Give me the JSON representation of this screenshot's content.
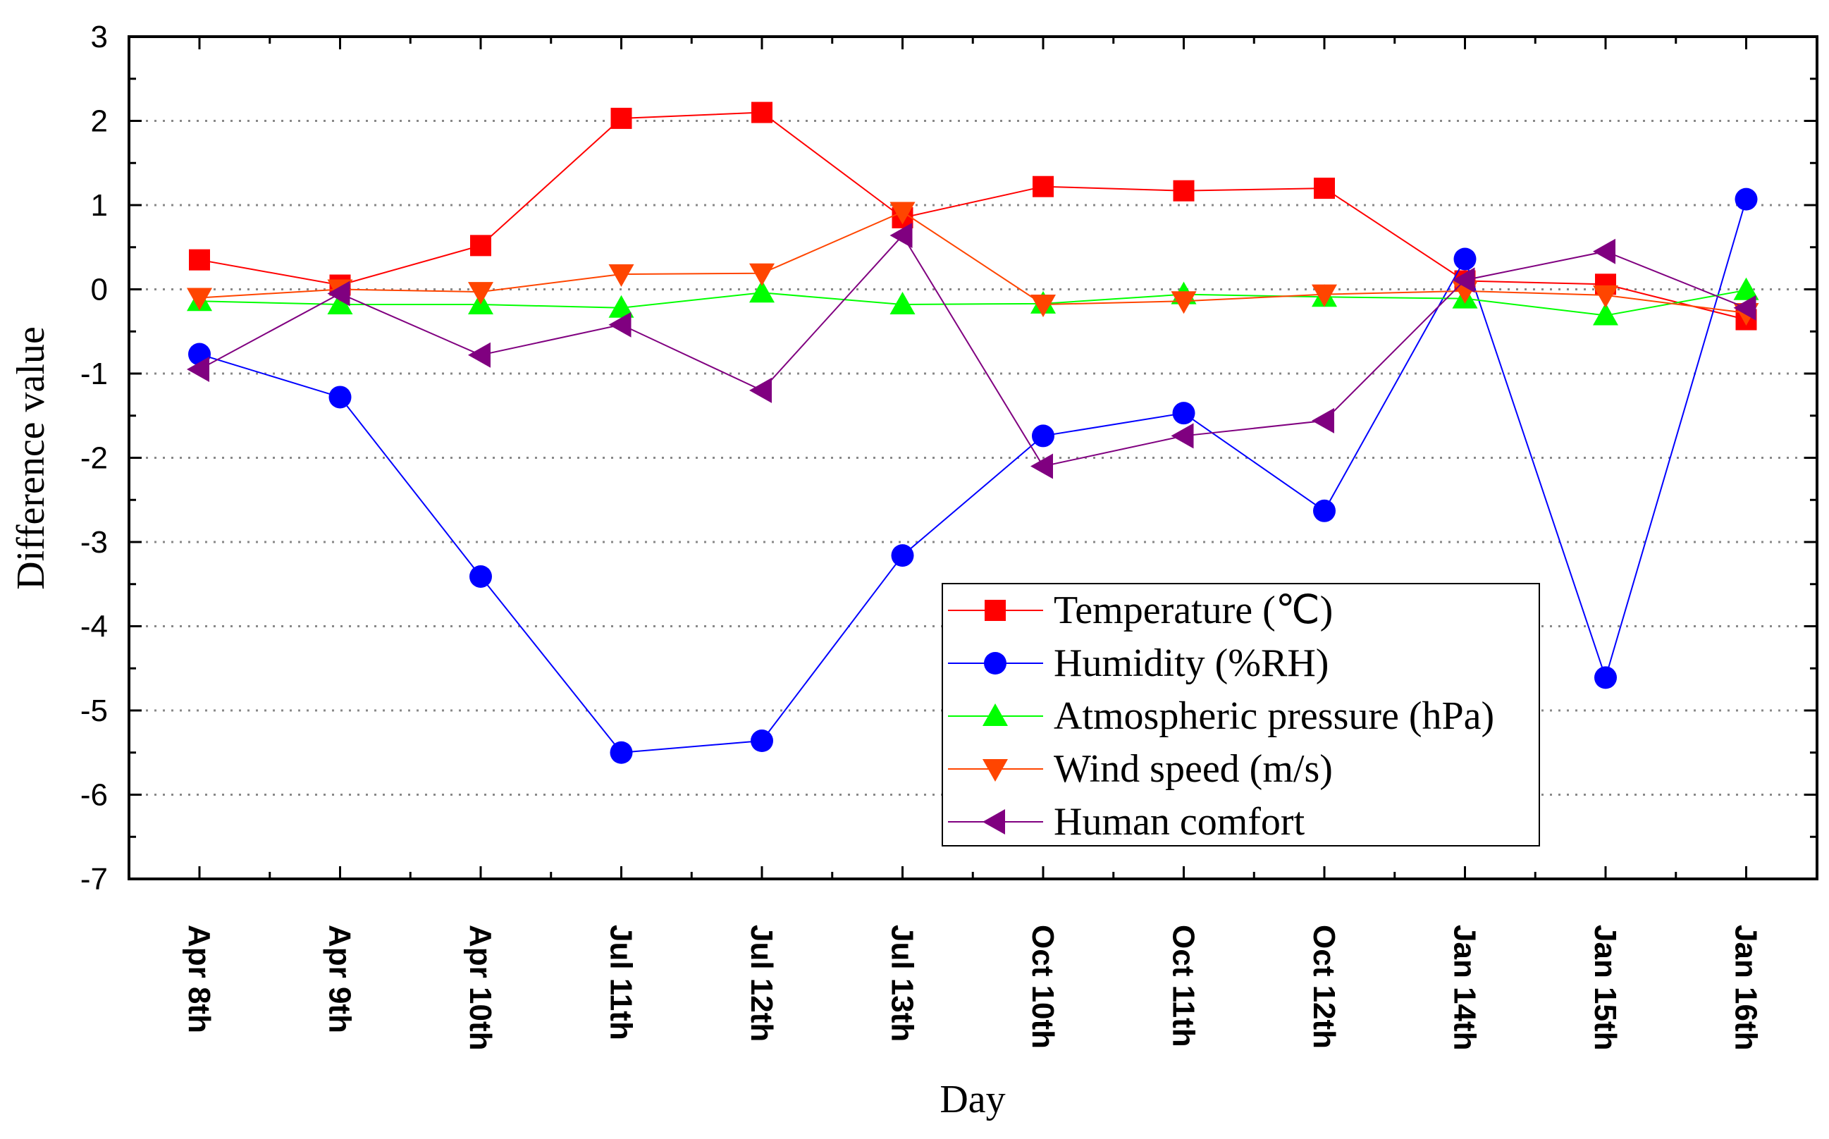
{
  "chart_data": {
    "type": "line",
    "title": "",
    "xlabel": "Day",
    "ylabel": "Difference value",
    "ylim": [
      -7,
      3
    ],
    "yticks": [
      "-7",
      "-6",
      "-5",
      "-4",
      "-3",
      "-2",
      "-1",
      "0",
      "1",
      "2",
      "3"
    ],
    "grid": "horizontal dotted",
    "legend_position": "lower-right",
    "categories": [
      "Apr 8th",
      "Apr 9th",
      "Apr 10th",
      "Jul 11th",
      "Jul 12th",
      "Jul 13th",
      "Oct 10th",
      "Oct 11th",
      "Oct 12th",
      "Jan 14th",
      "Jan 15th",
      "Jan 16th"
    ],
    "series": [
      {
        "name": "Temperature (℃)",
        "color": "#ff0000",
        "marker": "square",
        "values": [
          0.35,
          0.05,
          0.52,
          2.03,
          2.1,
          0.85,
          1.22,
          1.17,
          1.2,
          0.1,
          0.06,
          -0.36
        ]
      },
      {
        "name": "Humidity (%RH)",
        "color": "#0000ff",
        "marker": "circle",
        "values": [
          -0.77,
          -1.28,
          -3.41,
          -5.5,
          -5.36,
          -3.16,
          -1.74,
          -1.47,
          -2.63,
          0.36,
          -4.61,
          1.07
        ]
      },
      {
        "name": "Atmospheric pressure (hPa)",
        "color": "#00ff00",
        "marker": "triangle-up",
        "values": [
          -0.14,
          -0.18,
          -0.18,
          -0.22,
          -0.04,
          -0.18,
          -0.17,
          -0.06,
          -0.09,
          -0.11,
          -0.31,
          -0.01
        ]
      },
      {
        "name": "Wind speed (m/s)",
        "color": "#ff4500",
        "marker": "triangle-down",
        "values": [
          -0.1,
          0.0,
          -0.03,
          0.18,
          0.19,
          0.92,
          -0.18,
          -0.14,
          -0.06,
          -0.02,
          -0.07,
          -0.28
        ]
      },
      {
        "name": "Human comfort",
        "color": "#800080",
        "marker": "triangle-left",
        "values": [
          -0.95,
          -0.05,
          -0.78,
          -0.42,
          -1.2,
          0.64,
          -2.1,
          -1.74,
          -1.56,
          0.11,
          0.45,
          -0.22
        ]
      }
    ]
  }
}
